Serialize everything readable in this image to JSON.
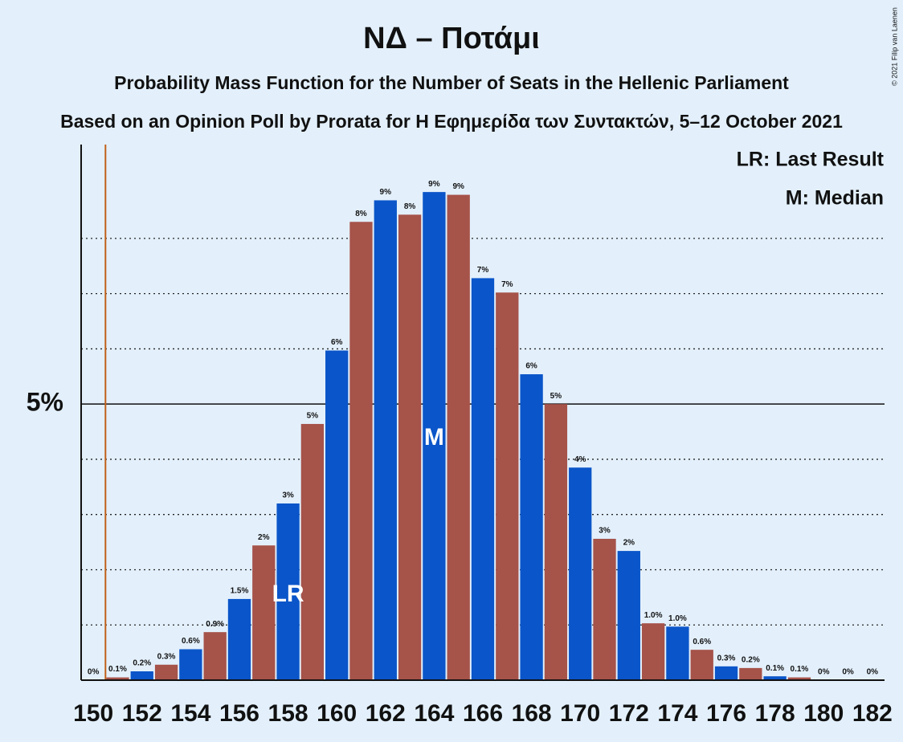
{
  "chart_data": {
    "type": "bar",
    "title": "ΝΔ – Ποτάμι",
    "subtitle": "Probability Mass Function for the Number of Seats in the Hellenic Parliament",
    "subtitle2": "Based on an Opinion Poll by Prorata for Η Εφημερίδα των Συντακτών, 5–12 October 2021",
    "copyright": "© 2021 Filip van Laenen",
    "legend": [
      "LR: Last Result",
      "M: Median"
    ],
    "lr_label": "LR",
    "median_label": "M",
    "last_result_seat": 158,
    "median_seat": 164,
    "majority_seat": 151,
    "categories": [
      "150",
      null,
      "152",
      null,
      "154",
      null,
      "156",
      null,
      "158",
      null,
      "160",
      null,
      "162",
      null,
      "164",
      null,
      "166",
      null,
      "168",
      null,
      "170",
      null,
      "172",
      null,
      "174",
      null,
      "176",
      null,
      "178",
      null,
      "180",
      null,
      "182"
    ],
    "seats": [
      150,
      151,
      152,
      153,
      154,
      155,
      156,
      157,
      158,
      159,
      160,
      161,
      162,
      163,
      164,
      165,
      166,
      167,
      168,
      169,
      170,
      171,
      172,
      173,
      174,
      175,
      176,
      177,
      178,
      179,
      180,
      181,
      182
    ],
    "values": [
      0,
      0.05,
      0.16,
      0.28,
      0.56,
      0.87,
      1.47,
      2.44,
      3.2,
      4.64,
      5.97,
      8.3,
      8.69,
      8.43,
      8.84,
      8.79,
      7.28,
      7.02,
      5.54,
      5.0,
      3.85,
      2.56,
      2.34,
      1.03,
      0.97,
      0.55,
      0.25,
      0.22,
      0.07,
      0.05,
      0,
      0,
      0
    ],
    "value_labels": [
      "0%",
      "0.1%",
      "0.2%",
      "0.3%",
      "0.6%",
      "0.9%",
      "1.5%",
      "2%",
      "3%",
      "5%",
      "6%",
      "8%",
      "9%",
      "8%",
      "9%",
      "9%",
      "7%",
      "7%",
      "6%",
      "5%",
      "4%",
      "3%",
      "2%",
      "1.0%",
      "1.0%",
      "0.6%",
      "0.3%",
      "0.2%",
      "0.1%",
      "0.1%",
      "0%",
      "0%",
      "0%"
    ],
    "bar_colors": [
      "#0a55c9",
      "#a6534a"
    ],
    "majority_color": "#c0601a",
    "ylim": [
      0,
      9.7
    ],
    "yticks": [
      {
        "value": 5,
        "label": "5%"
      }
    ],
    "minor_yticks": [
      1,
      2,
      3,
      4,
      6,
      7,
      8
    ]
  }
}
